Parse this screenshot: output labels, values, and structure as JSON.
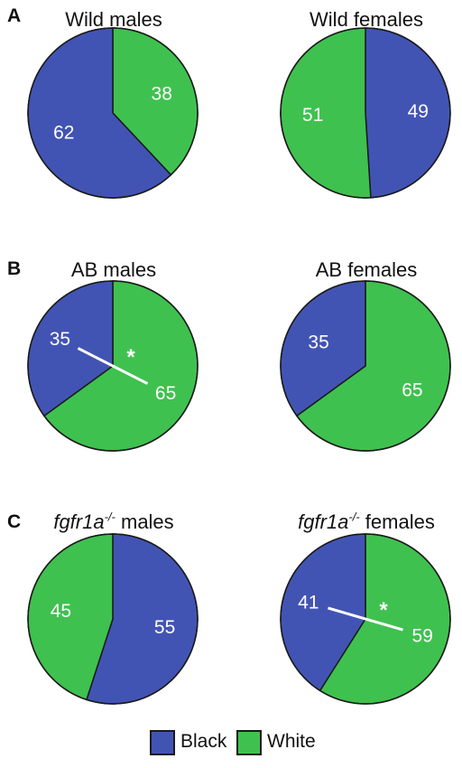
{
  "colors": {
    "black": "#4254b3",
    "white": "#3fc14f",
    "outline": "#1a1a1a",
    "label": "#ffffff"
  },
  "legend": [
    {
      "name": "Black",
      "color": "#4254b3"
    },
    {
      "name": "White",
      "color": "#3fc14f"
    }
  ],
  "panels": [
    {
      "letter": "A"
    },
    {
      "letter": "B"
    },
    {
      "letter": "C"
    }
  ],
  "chart_data": [
    {
      "type": "pie",
      "panel": "A",
      "title": "Wild males",
      "slices": [
        {
          "label": "White",
          "value": 38
        },
        {
          "label": "Black",
          "value": 62
        }
      ],
      "annotation": null
    },
    {
      "type": "pie",
      "panel": "A",
      "title": "Wild females",
      "slices": [
        {
          "label": "Black",
          "value": 49
        },
        {
          "label": "White",
          "value": 51
        }
      ],
      "annotation": null
    },
    {
      "type": "pie",
      "panel": "B",
      "title": "AB males",
      "slices": [
        {
          "label": "White",
          "value": 65
        },
        {
          "label": "Black",
          "value": 35
        }
      ],
      "annotation": "*"
    },
    {
      "type": "pie",
      "panel": "B",
      "title": "AB females",
      "slices": [
        {
          "label": "White",
          "value": 65
        },
        {
          "label": "Black",
          "value": 35
        }
      ],
      "annotation": null
    },
    {
      "type": "pie",
      "panel": "C",
      "title_gene": "fgfr1a",
      "title_superscript": "-/-",
      "title_rest": " males",
      "slices": [
        {
          "label": "Black",
          "value": 55
        },
        {
          "label": "White",
          "value": 45
        }
      ],
      "annotation": null
    },
    {
      "type": "pie",
      "panel": "C",
      "title_gene": "fgfr1a",
      "title_superscript": "-/-",
      "title_rest": " females",
      "slices": [
        {
          "label": "White",
          "value": 59
        },
        {
          "label": "Black",
          "value": 41
        }
      ],
      "annotation": "*"
    }
  ]
}
